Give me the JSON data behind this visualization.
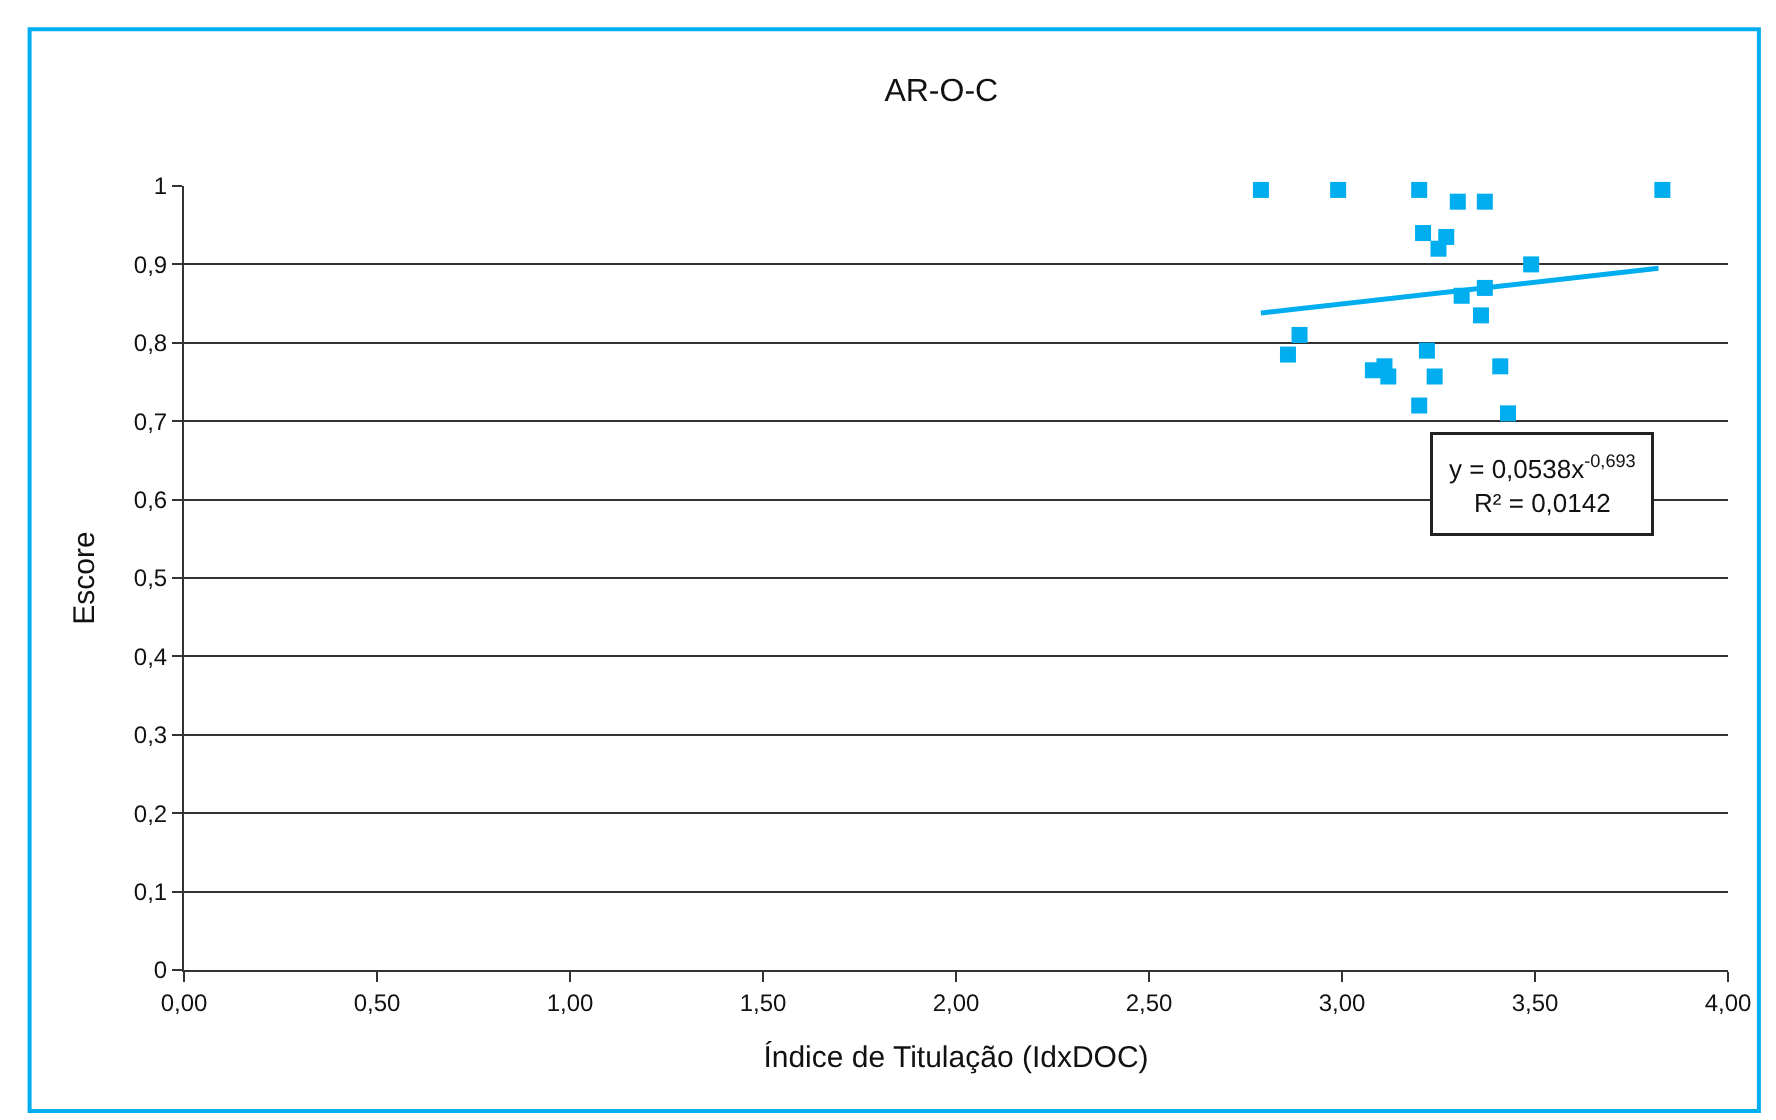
{
  "chart_data": {
    "type": "scatter",
    "title": "AR-O-C",
    "xlabel": "Índice de Titulação (IdxDOC)",
    "ylabel": "Escore",
    "series": [
      {
        "color": "#00aeef",
        "marker": "square",
        "x": [
          2.79,
          2.99,
          3.2,
          3.3,
          3.37,
          3.83,
          3.21,
          3.27,
          3.25,
          3.49,
          3.37,
          3.31,
          3.36,
          2.89,
          2.86,
          3.22,
          3.11,
          3.08,
          3.12,
          3.24,
          3.41,
          3.2,
          3.43
        ],
        "values": [
          0.995,
          0.995,
          0.995,
          0.98,
          0.98,
          0.995,
          0.94,
          0.935,
          0.92,
          0.9,
          0.87,
          0.86,
          0.835,
          0.81,
          0.785,
          0.79,
          0.77,
          0.765,
          0.757,
          0.757,
          0.77,
          0.72,
          0.71
        ]
      },
      {
        "type": "line",
        "color": "#00aeef",
        "marker": "none",
        "line_style": "solid",
        "x": [
          2.79,
          3.82
        ],
        "values": [
          0.838,
          0.895
        ]
      }
    ],
    "xlim": [
      0,
      4
    ],
    "ylim": [
      0,
      1
    ],
    "xticks": [
      {
        "value": 0,
        "label": "0,00"
      },
      {
        "value": 0.5,
        "label": "0,50"
      },
      {
        "value": 1,
        "label": "1,00"
      },
      {
        "value": 1.5,
        "label": "1,50"
      },
      {
        "value": 2,
        "label": "2,00"
      },
      {
        "value": 2.5,
        "label": "2,50"
      },
      {
        "value": 3,
        "label": "3,00"
      },
      {
        "value": 3.5,
        "label": "3,50"
      },
      {
        "value": 4,
        "label": "4,00"
      }
    ],
    "yticks": [
      0,
      {
        "value": 0.1,
        "label": "0,1"
      },
      {
        "value": 0.2,
        "label": "0,2"
      },
      {
        "value": 0.3,
        "label": "0,3"
      },
      {
        "value": 0.4,
        "label": "0,4"
      },
      {
        "value": 0.5,
        "label": "0,5"
      },
      {
        "value": 0.6,
        "label": "0,6"
      },
      {
        "value": 0.7,
        "label": "0,7"
      },
      {
        "value": 0.8,
        "label": "0,8"
      },
      {
        "value": 0.9,
        "label": "0,9"
      },
      1
    ],
    "grid": "y",
    "annotations": [
      "y = 0,0538x$^{-0,693}$\nR² = 0,0142"
    ]
  }
}
